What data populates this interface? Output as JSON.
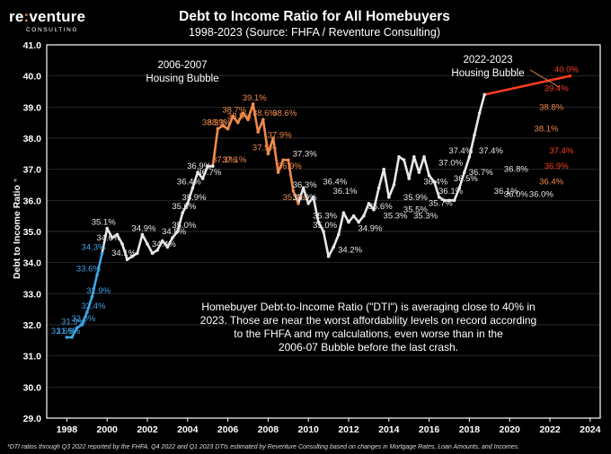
{
  "logo": {
    "name_prefix": "re",
    "name_colon": ":",
    "name_suffix": "venture",
    "tagline": "CONSULTING"
  },
  "colors": {
    "background": "#000000",
    "plot_border": "#ffffff",
    "gridline": "#3a3a3a",
    "blue": "#3fa4e6",
    "white": "#e8e8e8",
    "orange": "#f08a4b",
    "red": "#ff3b1f"
  },
  "chart_data": {
    "type": "line",
    "title": "Debt to Income Ratio for All Homebuyers",
    "subtitle": "1998-2023 (Source: FHFA / Reventure Consulting)",
    "ylabel": "Debt to Income Ratio",
    "ylabel_marker": "*",
    "xlim": [
      1997,
      2024.5
    ],
    "ylim": [
      29,
      41
    ],
    "grid": true,
    "x_ticks": [
      1998,
      2000,
      2002,
      2004,
      2006,
      2008,
      2010,
      2012,
      2014,
      2016,
      2018,
      2020,
      2022,
      2024
    ],
    "y_ticks": [
      "29.0",
      "30.0",
      "31.0",
      "32.0",
      "33.0",
      "34.0",
      "35.0",
      "36.0",
      "37.0",
      "38.0",
      "39.0",
      "40.0",
      "41.0"
    ],
    "series": [
      {
        "points": [
          [
            1998.0,
            31.6
          ],
          [
            1998.25,
            31.6
          ],
          [
            1998.5,
            31.9
          ],
          [
            1998.75,
            32.0
          ],
          [
            1999.0,
            32.4
          ],
          [
            1999.25,
            32.9
          ],
          [
            1999.5,
            33.6
          ],
          [
            1999.75,
            34.3
          ],
          [
            2000.0,
            35.1
          ],
          [
            2000.25,
            34.8
          ],
          [
            2000.5,
            34.9
          ],
          [
            2000.75,
            34.6
          ],
          [
            2001.0,
            34.1
          ],
          [
            2001.25,
            34.2
          ],
          [
            2001.5,
            34.3
          ],
          [
            2001.75,
            34.9
          ],
          [
            2002.0,
            34.6
          ],
          [
            2002.25,
            34.3
          ],
          [
            2002.5,
            34.4
          ],
          [
            2002.75,
            34.7
          ],
          [
            2003.0,
            34.5
          ],
          [
            2003.25,
            34.8
          ],
          [
            2003.5,
            35.0
          ],
          [
            2003.75,
            35.6
          ],
          [
            2004.0,
            35.9
          ],
          [
            2004.25,
            36.4
          ],
          [
            2004.5,
            36.9
          ],
          [
            2004.75,
            36.7
          ],
          [
            2005.0,
            37.1
          ],
          [
            2005.25,
            37.1
          ],
          [
            2005.5,
            38.3
          ],
          [
            2005.75,
            38.4
          ],
          [
            2006.0,
            38.3
          ],
          [
            2006.25,
            38.7
          ],
          [
            2006.5,
            38.5
          ],
          [
            2006.75,
            38.8
          ],
          [
            2007.0,
            38.6
          ],
          [
            2007.25,
            39.1
          ],
          [
            2007.5,
            38.2
          ],
          [
            2007.75,
            38.6
          ],
          [
            2008.0,
            37.5
          ],
          [
            2008.25,
            38.0
          ],
          [
            2008.5,
            36.9
          ],
          [
            2008.75,
            37.3
          ],
          [
            2009.0,
            37.3
          ],
          [
            2009.25,
            36.3
          ],
          [
            2009.5,
            35.9
          ],
          [
            2009.75,
            36.4
          ],
          [
            2010.0,
            35.9
          ],
          [
            2010.25,
            36.1
          ],
          [
            2010.5,
            35.3
          ],
          [
            2010.75,
            35.0
          ],
          [
            2011.0,
            34.2
          ],
          [
            2011.25,
            34.5
          ],
          [
            2011.5,
            34.9
          ],
          [
            2011.75,
            35.6
          ],
          [
            2012.0,
            35.3
          ],
          [
            2012.25,
            35.5
          ],
          [
            2012.5,
            35.3
          ],
          [
            2012.75,
            35.5
          ],
          [
            2013.0,
            35.9
          ],
          [
            2013.25,
            35.7
          ],
          [
            2013.5,
            36.4
          ],
          [
            2013.75,
            37.0
          ],
          [
            2014.0,
            36.1
          ],
          [
            2014.25,
            36.5
          ],
          [
            2014.5,
            37.4
          ],
          [
            2014.75,
            37.3
          ],
          [
            2015.0,
            36.7
          ],
          [
            2015.25,
            37.4
          ],
          [
            2015.5,
            36.9
          ],
          [
            2015.75,
            37.4
          ],
          [
            2016.0,
            36.8
          ],
          [
            2016.25,
            36.6
          ],
          [
            2016.5,
            36.1
          ],
          [
            2016.75,
            36.0
          ],
          [
            2017.0,
            36.0
          ],
          [
            2017.25,
            36.0
          ],
          [
            2017.5,
            36.4
          ],
          [
            2017.75,
            36.9
          ],
          [
            2018.0,
            37.4
          ],
          [
            2018.25,
            38.1
          ],
          [
            2018.5,
            38.8
          ],
          [
            2018.75,
            39.4
          ],
          [
            2023.0,
            40.0
          ]
        ]
      }
    ],
    "data_labels": [
      {
        "x": 1998.0,
        "y": 31.6,
        "text": "31.6%"
      },
      {
        "x": 1998.25,
        "y": 31.6,
        "text": "31.6%"
      },
      {
        "x": 1998.5,
        "y": 31.9,
        "text": "31.9%"
      },
      {
        "x": 1999.0,
        "y": 32.0,
        "text": "32.0%"
      },
      {
        "x": 1999.5,
        "y": 32.4,
        "text": "32.4%"
      },
      {
        "x": 1999.75,
        "y": 32.9,
        "text": "32.9%"
      },
      {
        "x": 1999.25,
        "y": 33.6,
        "text": "33.6%"
      },
      {
        "x": 1999.5,
        "y": 34.3,
        "text": "34.3%"
      },
      {
        "x": 2000.0,
        "y": 35.1,
        "text": "35.1%"
      },
      {
        "x": 2000.25,
        "y": 34.6,
        "text": "34.6%"
      },
      {
        "x": 2001.0,
        "y": 34.1,
        "text": "34.1%"
      },
      {
        "x": 2002.0,
        "y": 34.9,
        "text": "34.9%"
      },
      {
        "x": 2003.5,
        "y": 34.8,
        "text": "34.8%"
      },
      {
        "x": 2003.0,
        "y": 34.4,
        "text": "34.4%"
      },
      {
        "x": 2004.0,
        "y": 35.0,
        "text": "35.0%"
      },
      {
        "x": 2004.0,
        "y": 35.6,
        "text": "35.6%"
      },
      {
        "x": 2004.5,
        "y": 35.9,
        "text": "35.9%"
      },
      {
        "x": 2004.25,
        "y": 36.4,
        "text": "36.4%"
      },
      {
        "x": 2004.75,
        "y": 36.9,
        "text": "36.9%"
      },
      {
        "x": 2005.25,
        "y": 36.7,
        "text": "36.7%"
      },
      {
        "x": 2006.0,
        "y": 37.1,
        "text": "37.1%"
      },
      {
        "x": 2006.5,
        "y": 37.1,
        "text": "37.1%"
      },
      {
        "x": 2005.5,
        "y": 38.3,
        "text": "38.3%"
      },
      {
        "x": 2005.75,
        "y": 38.3,
        "text": "38.3%"
      },
      {
        "x": 2006.5,
        "y": 38.7,
        "text": "38.7%"
      },
      {
        "x": 2006.75,
        "y": 38.5,
        "text": "38.5%"
      },
      {
        "x": 2007.5,
        "y": 39.1,
        "text": "39.1%"
      },
      {
        "x": 2008.0,
        "y": 38.6,
        "text": "38.6%"
      },
      {
        "x": 2008.75,
        "y": 37.9,
        "text": "37.9%"
      },
      {
        "x": 2009.0,
        "y": 38.6,
        "text": "38.6%"
      },
      {
        "x": 2008.0,
        "y": 37.5,
        "text": "37.5%"
      },
      {
        "x": 2010.0,
        "y": 37.3,
        "text": "37.3%"
      },
      {
        "x": 2009.25,
        "y": 36.9,
        "text": "36.9%"
      },
      {
        "x": 2010.0,
        "y": 36.3,
        "text": "36.3%"
      },
      {
        "x": 2009.5,
        "y": 35.9,
        "text": "35.9%"
      },
      {
        "x": 2010.0,
        "y": 35.9,
        "text": "35.9%"
      },
      {
        "x": 2011.5,
        "y": 36.4,
        "text": "36.4%"
      },
      {
        "x": 2012.0,
        "y": 36.1,
        "text": "36.1%"
      },
      {
        "x": 2011.0,
        "y": 35.3,
        "text": "35.3%"
      },
      {
        "x": 2011.0,
        "y": 35.0,
        "text": "35.0%"
      },
      {
        "x": 2012.25,
        "y": 34.2,
        "text": "34.2%"
      },
      {
        "x": 2013.25,
        "y": 34.9,
        "text": "34.9%"
      },
      {
        "x": 2013.75,
        "y": 35.6,
        "text": "35.6%"
      },
      {
        "x": 2014.5,
        "y": 35.3,
        "text": "35.3%"
      },
      {
        "x": 2015.5,
        "y": 35.5,
        "text": "35.5%"
      },
      {
        "x": 2015.5,
        "y": 35.9,
        "text": "35.9%"
      },
      {
        "x": 2016.0,
        "y": 35.3,
        "text": "35.3%"
      },
      {
        "x": 2016.5,
        "y": 36.4,
        "text": "36.4%"
      },
      {
        "x": 2016.75,
        "y": 35.7,
        "text": "35.7%"
      },
      {
        "x": 2017.25,
        "y": 36.1,
        "text": "36.1%"
      },
      {
        "x": 2017.25,
        "y": 37.0,
        "text": "37.0%"
      },
      {
        "x": 2017.75,
        "y": 37.4,
        "text": "37.4%"
      },
      {
        "x": 2018.0,
        "y": 36.5,
        "text": "36.5%"
      },
      {
        "x": 2018.75,
        "y": 36.7,
        "text": "36.7%"
      },
      {
        "x": 2019.25,
        "y": 37.4,
        "text": "37.4%"
      },
      {
        "x": 2020.0,
        "y": 36.1,
        "text": "36.1%"
      },
      {
        "x": 2020.5,
        "y": 36.8,
        "text": "36.8%"
      },
      {
        "x": 2020.5,
        "y": 36.0,
        "text": "36.0%"
      },
      {
        "x": 2021.75,
        "y": 36.0,
        "text": "36.0%"
      },
      {
        "x": 2022.25,
        "y": 36.4,
        "text": "36.4%"
      },
      {
        "x": 2022.5,
        "y": 36.9,
        "text": "36.9%"
      },
      {
        "x": 2022.75,
        "y": 37.4,
        "text": "37.4%"
      },
      {
        "x": 2022.0,
        "y": 38.1,
        "text": "38.1%"
      },
      {
        "x": 2022.25,
        "y": 38.8,
        "text": "38.8%"
      },
      {
        "x": 2022.5,
        "y": 39.4,
        "text": "39.4%"
      },
      {
        "x": 2023.0,
        "y": 40.0,
        "text": "40.0%"
      }
    ],
    "annotations": {
      "bubble_2006": [
        "2006-2007",
        "Housing Bubble"
      ],
      "bubble_2022": [
        "2022-2023",
        "Housing Bubble"
      ],
      "note": [
        "Homebuyer Debt-to-Income Ratio (\"DTI\") is averaging close to 40% in",
        "2023. Those are near the worst affordability levels on record according",
        "to the FHFA and my calculations, even worse than in the",
        "2006-07 Bubble before the last crash."
      ]
    },
    "footnote": "*DTI ratios through Q3 2022 reported by the FHFA. Q4 2022 and Q1 2023 DTIs estimated by Reventure Consulting based on changes in Mortgage Rates, Loan Amounts, and Incomes."
  }
}
